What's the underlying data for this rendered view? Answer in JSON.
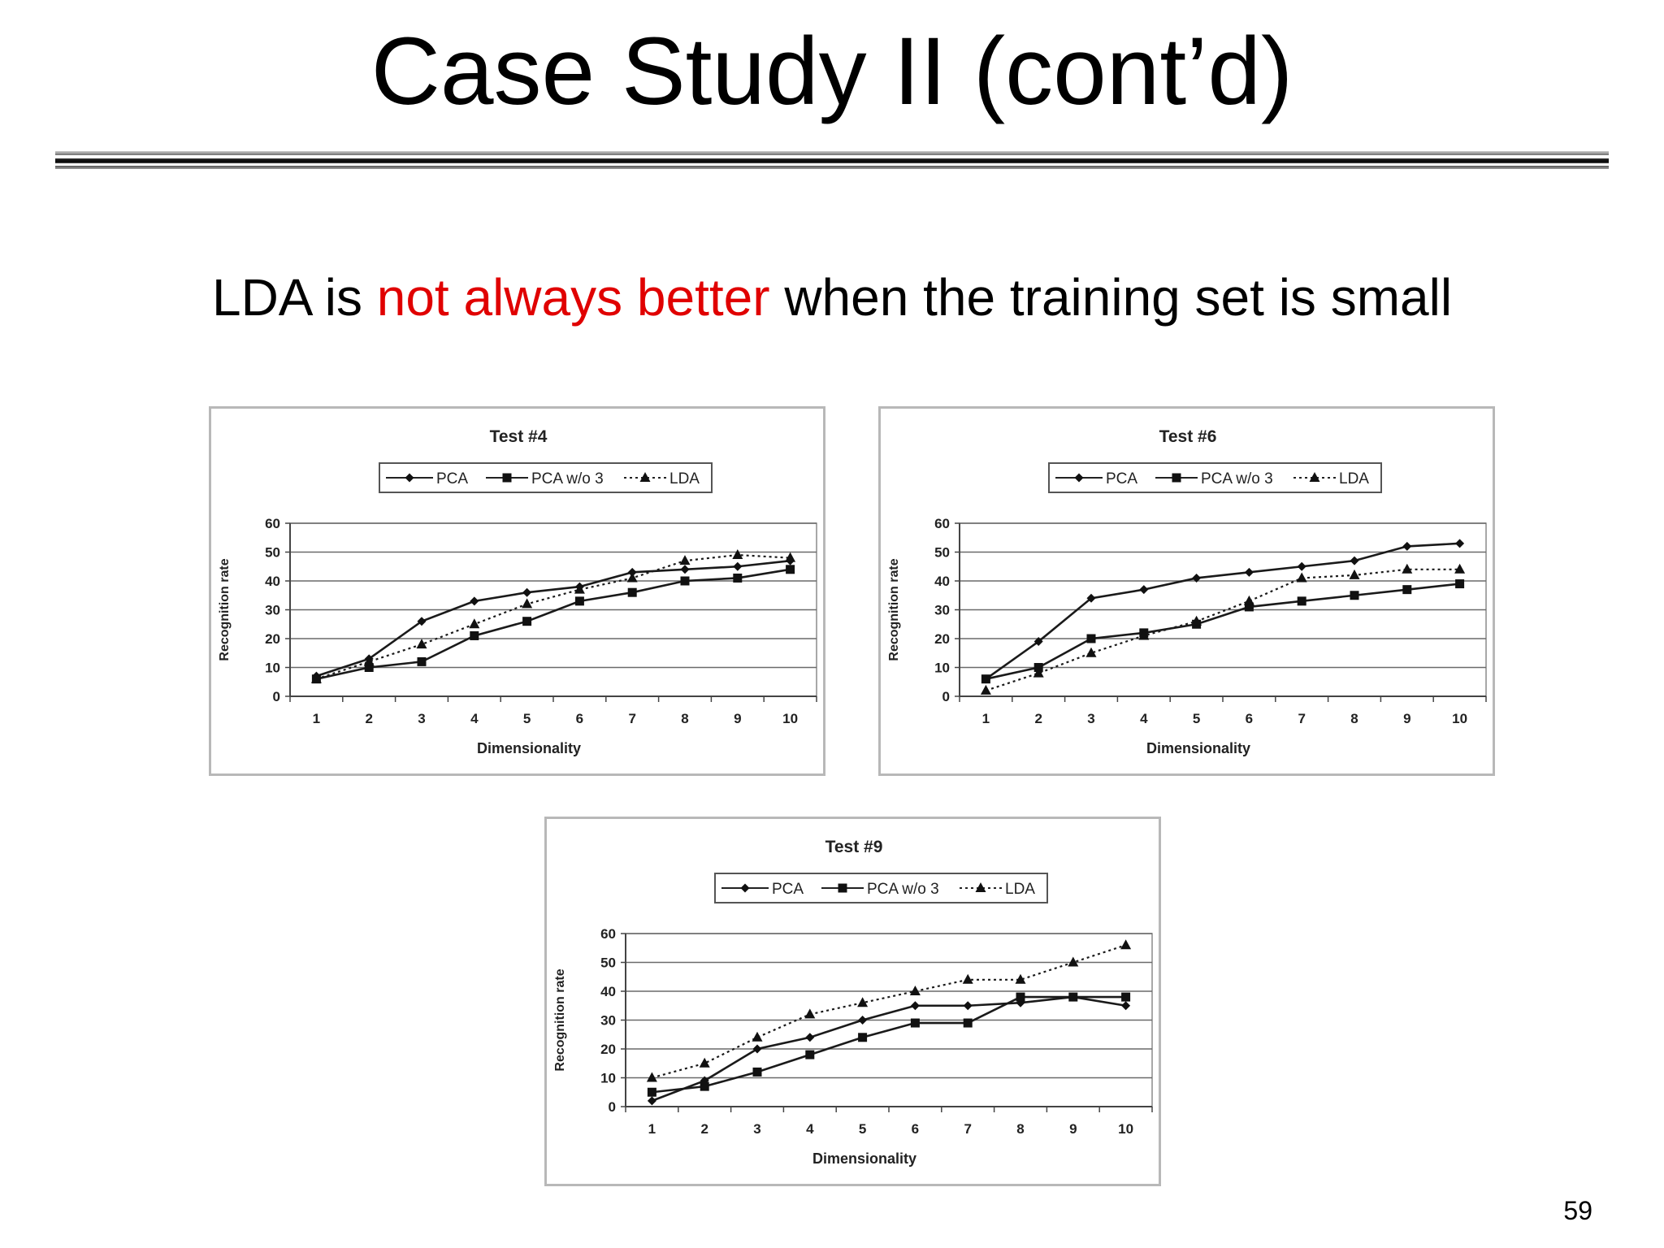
{
  "slide": {
    "title": "Case Study II (cont’d)",
    "subtitle_part1": "LDA is ",
    "subtitle_highlight": "not always better",
    "subtitle_part2": " when the training set is small",
    "highlight_color": "#e00000",
    "page_number": "59"
  },
  "chart_data": [
    {
      "type": "line",
      "title": "Test #4",
      "xlabel": "Dimensionality",
      "ylabel": "Recognition rate",
      "x": [
        1,
        2,
        3,
        4,
        5,
        6,
        7,
        8,
        9,
        10
      ],
      "ylim": [
        0,
        60
      ],
      "yticks": [
        0,
        10,
        20,
        30,
        40,
        50,
        60
      ],
      "grid": true,
      "legend": "top",
      "series": [
        {
          "name": "PCA",
          "marker": "diamond",
          "dash": "solid",
          "values": [
            7,
            13,
            26,
            33,
            36,
            38,
            43,
            44,
            45,
            47
          ]
        },
        {
          "name": "PCA w/o 3",
          "marker": "square",
          "dash": "solid",
          "values": [
            6,
            10,
            12,
            21,
            26,
            33,
            36,
            40,
            41,
            44
          ]
        },
        {
          "name": "LDA",
          "marker": "triangle",
          "dash": "dotted",
          "values": [
            6,
            12,
            18,
            25,
            32,
            37,
            41,
            47,
            49,
            48
          ]
        }
      ]
    },
    {
      "type": "line",
      "title": "Test #6",
      "xlabel": "Dimensionality",
      "ylabel": "Recognition rate",
      "x": [
        1,
        2,
        3,
        4,
        5,
        6,
        7,
        8,
        9,
        10
      ],
      "ylim": [
        0,
        60
      ],
      "yticks": [
        0,
        10,
        20,
        30,
        40,
        50,
        60
      ],
      "grid": true,
      "legend": "top",
      "series": [
        {
          "name": "PCA",
          "marker": "diamond",
          "dash": "solid",
          "values": [
            6,
            19,
            34,
            37,
            41,
            43,
            45,
            47,
            52,
            53
          ]
        },
        {
          "name": "PCA w/o 3",
          "marker": "square",
          "dash": "solid",
          "values": [
            6,
            10,
            20,
            22,
            25,
            31,
            33,
            35,
            37,
            39
          ]
        },
        {
          "name": "LDA",
          "marker": "triangle",
          "dash": "dotted",
          "values": [
            2,
            8,
            15,
            21,
            26,
            33,
            41,
            42,
            44,
            44
          ]
        }
      ]
    },
    {
      "type": "line",
      "title": "Test #9",
      "xlabel": "Dimensionality",
      "ylabel": "Recognition rate",
      "x": [
        1,
        2,
        3,
        4,
        5,
        6,
        7,
        8,
        9,
        10
      ],
      "ylim": [
        0,
        60
      ],
      "yticks": [
        0,
        10,
        20,
        30,
        40,
        50,
        60
      ],
      "grid": true,
      "legend": "top",
      "series": [
        {
          "name": "PCA",
          "marker": "diamond",
          "dash": "solid",
          "values": [
            2,
            9,
            20,
            24,
            30,
            35,
            35,
            36,
            38,
            35
          ]
        },
        {
          "name": "PCA w/o 3",
          "marker": "square",
          "dash": "solid",
          "values": [
            5,
            7,
            12,
            18,
            24,
            29,
            29,
            38,
            38,
            38
          ]
        },
        {
          "name": "LDA",
          "marker": "triangle",
          "dash": "dotted",
          "values": [
            10,
            15,
            24,
            32,
            36,
            40,
            44,
            44,
            50,
            56
          ]
        }
      ]
    }
  ]
}
